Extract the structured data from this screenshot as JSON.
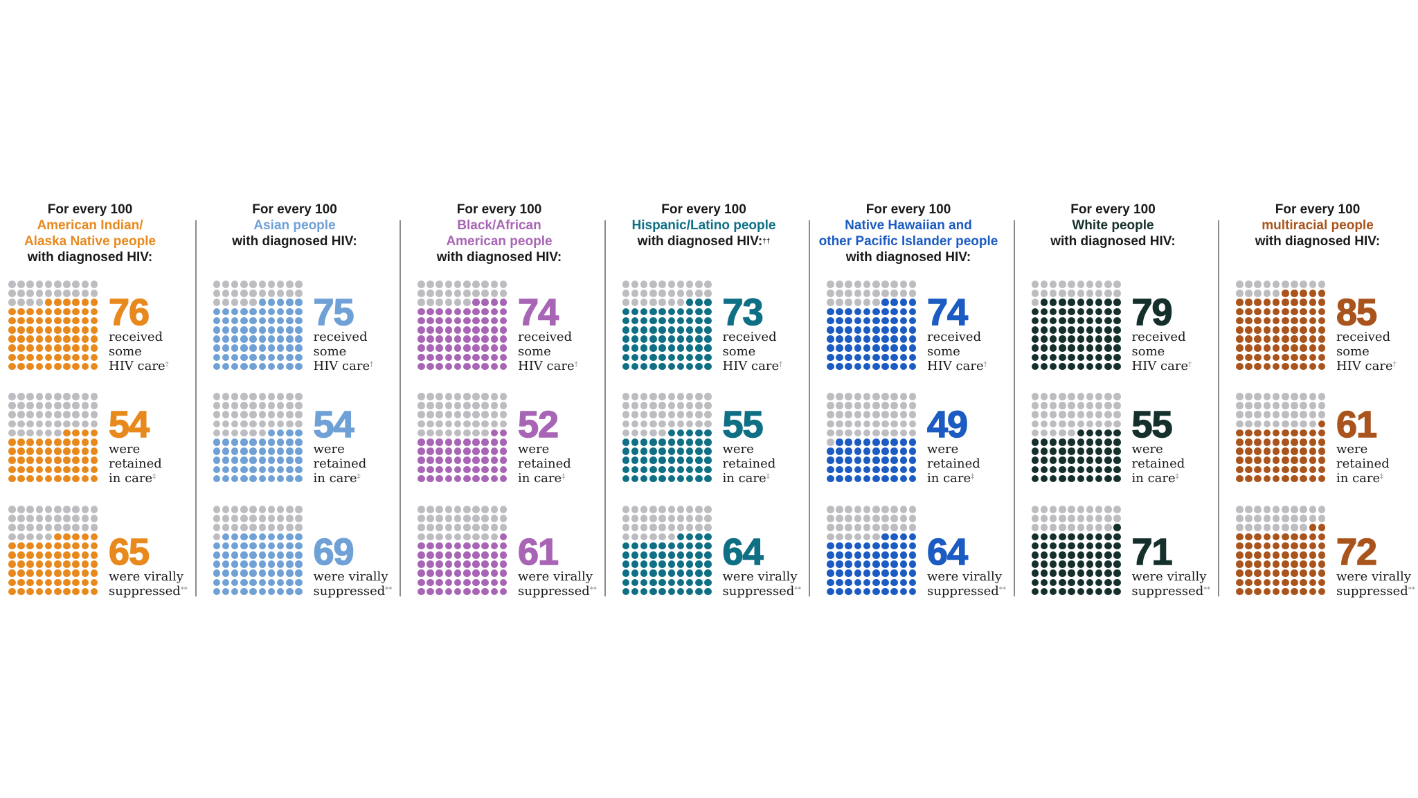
{
  "chart_data": {
    "type": "waffle",
    "title_prefix": "For every 100",
    "title_suffix": "with diagnosed HIV:",
    "inactive_color": "#BDBDC1",
    "metrics": [
      {
        "key": "care",
        "lines": [
          "received",
          "some",
          "HIV care"
        ],
        "mark": "†"
      },
      {
        "key": "retained",
        "lines": [
          "were",
          "retained",
          "in care"
        ],
        "mark": "‡"
      },
      {
        "key": "suppressed",
        "lines": [
          "were virally",
          "suppressed"
        ],
        "mark": "**"
      }
    ],
    "groups": [
      {
        "name_lines": [
          "American Indian/",
          "Alaska Native people"
        ],
        "suffix_mark": "",
        "color": "#E8891E",
        "values": [
          76,
          54,
          65
        ]
      },
      {
        "name_lines": [
          "Asian people"
        ],
        "suffix_mark": "",
        "color": "#6FA0D6",
        "values": [
          75,
          54,
          69
        ]
      },
      {
        "name_lines": [
          "Black/African",
          "American people"
        ],
        "suffix_mark": "",
        "color": "#A865B5",
        "values": [
          74,
          52,
          61
        ]
      },
      {
        "name_lines": [
          "Hispanic/Latino people"
        ],
        "suffix_mark": "††",
        "color": "#0E6F85",
        "values": [
          73,
          55,
          64
        ]
      },
      {
        "name_lines": [
          "Native Hawaiian and",
          "other Pacific Islander people"
        ],
        "suffix_mark": "",
        "color": "#1B5BC2",
        "values": [
          74,
          49,
          64
        ]
      },
      {
        "name_lines": [
          "White people"
        ],
        "suffix_mark": "",
        "color": "#15302C",
        "values": [
          79,
          55,
          71
        ]
      },
      {
        "name_lines": [
          "multiracial people"
        ],
        "suffix_mark": "",
        "color": "#A9541C",
        "values": [
          85,
          61,
          72
        ]
      }
    ]
  }
}
